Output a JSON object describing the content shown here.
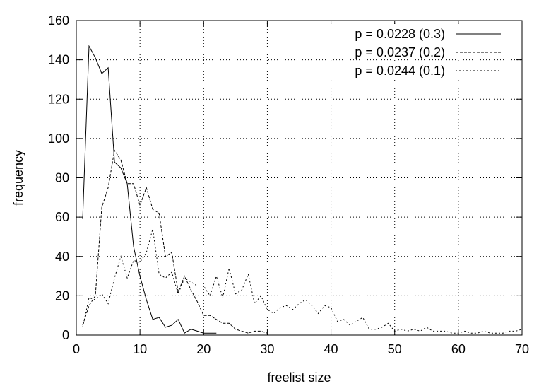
{
  "chart_data": {
    "type": "line",
    "title": "",
    "xlabel": "freelist size",
    "ylabel": "frequency",
    "xlim": [
      0,
      70
    ],
    "ylim": [
      0,
      160
    ],
    "xticks": [
      0,
      10,
      20,
      30,
      40,
      50,
      60,
      70
    ],
    "yticks": [
      0,
      20,
      40,
      60,
      80,
      100,
      120,
      140,
      160
    ],
    "grid": true,
    "legend_position": "top-right",
    "series": [
      {
        "name": "p = 0.0228 (0.3)",
        "style": "solid",
        "x": [
          1,
          2,
          3,
          4,
          5,
          6,
          7,
          8,
          9,
          10,
          11,
          12,
          13,
          14,
          15,
          16,
          17,
          18,
          19,
          20,
          21,
          22
        ],
        "y": [
          59,
          147,
          141,
          133,
          136,
          88,
          85,
          77,
          45,
          30,
          18,
          8,
          9,
          4,
          5,
          8,
          1,
          3,
          2,
          1,
          1,
          1
        ]
      },
      {
        "name": "p = 0.0237 (0.2)",
        "style": "dashed",
        "x": [
          1,
          2,
          3,
          4,
          5,
          6,
          7,
          8,
          9,
          10,
          11,
          12,
          13,
          14,
          15,
          16,
          17,
          18,
          19,
          20,
          21,
          22,
          23,
          24,
          25,
          26,
          27,
          28,
          29,
          30
        ],
        "y": [
          5,
          15,
          20,
          65,
          75,
          94,
          89,
          77,
          77,
          66,
          75,
          64,
          62,
          40,
          42,
          22,
          30,
          23,
          17,
          10,
          10,
          8,
          6,
          6,
          3,
          2,
          1,
          2,
          2,
          1
        ]
      },
      {
        "name": "p = 0.0244 (0.1)",
        "style": "dotted",
        "x": [
          1,
          2,
          3,
          4,
          5,
          6,
          7,
          8,
          9,
          10,
          11,
          12,
          13,
          14,
          15,
          16,
          17,
          18,
          19,
          20,
          21,
          22,
          23,
          24,
          25,
          26,
          27,
          28,
          29,
          30,
          31,
          32,
          33,
          34,
          35,
          36,
          37,
          38,
          39,
          40,
          41,
          42,
          43,
          44,
          45,
          46,
          47,
          48,
          49,
          50,
          51,
          52,
          53,
          54,
          55,
          56,
          57,
          58,
          59,
          60,
          61,
          62,
          63,
          64,
          65,
          66,
          67,
          68,
          69,
          70
        ],
        "y": [
          4,
          19,
          18,
          21,
          16,
          29,
          40,
          29,
          38,
          37,
          42,
          54,
          31,
          29,
          32,
          21,
          29,
          27,
          25,
          25,
          20,
          30,
          19,
          34,
          21,
          23,
          31,
          16,
          20,
          13,
          11,
          14,
          15,
          13,
          16,
          18,
          15,
          11,
          15,
          14,
          7,
          8,
          5,
          7,
          9,
          3,
          3,
          4,
          6,
          2,
          3,
          2,
          3,
          2,
          4,
          2,
          2,
          2,
          1,
          1,
          2,
          1,
          1,
          2,
          1,
          1,
          1,
          2,
          2,
          3
        ]
      }
    ]
  }
}
